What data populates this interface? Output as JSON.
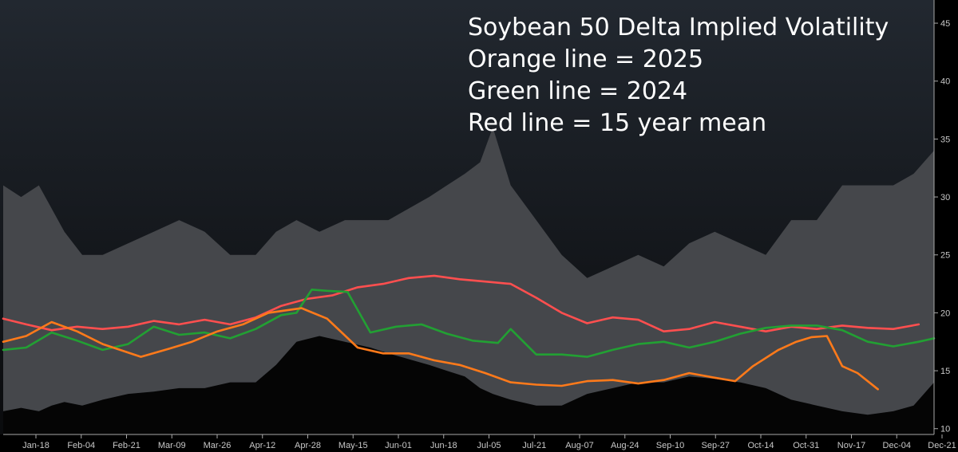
{
  "chart_data": {
    "type": "line",
    "title_lines": [
      "Soybean 50 Delta Implied Volatility",
      "Orange line = 2025",
      "Green line = 2024",
      "Red line = 15 year mean"
    ],
    "x_tick_labels": [
      "Jan-18",
      "Feb-04",
      "Feb-21",
      "Mar-09",
      "Mar-26",
      "Apr-12",
      "Apr-28",
      "May-15",
      "Jun-01",
      "Jun-18",
      "Jul-05",
      "Jul-21",
      "Aug-07",
      "Aug-24",
      "Sep-10",
      "Sep-27",
      "Oct-14",
      "Oct-31",
      "Nov-17",
      "Dec-04",
      "Dec-21"
    ],
    "y_ticks": [
      10,
      15,
      20,
      25,
      30,
      35,
      40,
      45
    ],
    "ylim": [
      9.5,
      47
    ],
    "xlim": [
      1,
      366
    ],
    "grid": false,
    "y_axis_position": "right",
    "colors": {
      "background_top": "#222830",
      "background_bottom": "#0a0b0d",
      "range_band": "#45474b",
      "range_low": "#050505",
      "orange": "#ff7a1a",
      "green": "#22a033",
      "red": "#ff4f4f",
      "axis": "#a8a8a8"
    },
    "range_band": {
      "x": [
        1,
        8,
        15,
        20,
        25,
        32,
        40,
        50,
        60,
        70,
        80,
        90,
        100,
        108,
        116,
        125,
        135,
        145,
        152,
        160,
        168,
        175,
        182,
        188,
        193,
        200,
        210,
        220,
        230,
        240,
        250,
        260,
        270,
        280,
        290,
        300,
        310,
        320,
        330,
        340,
        350,
        358,
        366
      ],
      "upper": [
        31,
        30,
        31,
        29,
        27,
        25,
        25,
        26,
        27,
        28,
        27,
        25,
        25,
        27,
        28,
        27,
        28,
        28,
        28,
        29,
        30,
        31,
        32,
        33,
        36,
        31,
        28,
        25,
        23,
        24,
        25,
        24,
        26,
        27,
        26,
        25,
        28,
        28,
        31,
        31,
        31,
        32,
        34
      ],
      "lower": [
        11.5,
        11.8,
        11.5,
        12,
        12.3,
        12,
        12.5,
        13,
        13.2,
        13.5,
        13.5,
        14,
        14,
        15.5,
        17.5,
        18,
        17.5,
        17,
        16.5,
        16,
        15.5,
        15,
        14.5,
        13.5,
        13,
        12.5,
        12,
        12,
        13,
        13.5,
        14,
        14,
        14.5,
        14.3,
        14,
        13.5,
        12.5,
        12,
        11.5,
        11.2,
        11.5,
        12,
        14
      ]
    },
    "series": [
      {
        "name": "2025",
        "color": "#ff7a1a",
        "x": [
          1,
          10,
          20,
          30,
          40,
          55,
          66,
          75,
          85,
          95,
          105,
          118,
          128,
          140,
          150,
          160,
          170,
          180,
          190,
          200,
          210,
          220,
          230,
          240,
          250,
          260,
          270,
          280,
          288,
          295,
          305,
          312,
          318,
          324,
          330,
          336,
          344
        ],
        "values": [
          17.5,
          18.0,
          19.2,
          18.4,
          17.3,
          16.2,
          16.9,
          17.5,
          18.4,
          19.0,
          20.0,
          20.4,
          19.5,
          17.0,
          16.5,
          16.5,
          15.9,
          15.5,
          14.8,
          14.0,
          13.8,
          13.7,
          14.1,
          14.2,
          13.9,
          14.2,
          14.8,
          14.4,
          14.1,
          15.4,
          16.8,
          17.5,
          17.9,
          18.0,
          15.4,
          14.8,
          13.4
        ]
      },
      {
        "name": "2024",
        "color": "#22a033",
        "x": [
          1,
          10,
          20,
          30,
          40,
          50,
          60,
          70,
          80,
          90,
          100,
          110,
          116,
          122,
          128,
          136,
          145,
          155,
          165,
          175,
          185,
          195,
          200,
          210,
          220,
          230,
          240,
          250,
          260,
          270,
          280,
          290,
          300,
          310,
          320,
          330,
          340,
          350,
          360,
          366
        ],
        "values": [
          16.8,
          17.0,
          18.3,
          17.6,
          16.8,
          17.3,
          18.8,
          18.1,
          18.3,
          17.8,
          18.6,
          19.8,
          20.0,
          22.0,
          21.9,
          21.8,
          18.3,
          18.8,
          19.0,
          18.2,
          17.6,
          17.4,
          18.6,
          16.4,
          16.4,
          16.2,
          16.8,
          17.3,
          17.5,
          17.0,
          17.5,
          18.2,
          18.7,
          18.9,
          18.9,
          18.5,
          17.5,
          17.1,
          17.5,
          17.8
        ]
      },
      {
        "name": "15 year mean",
        "color": "#ff4f4f",
        "x": [
          1,
          10,
          20,
          30,
          40,
          50,
          60,
          70,
          80,
          90,
          100,
          110,
          120,
          130,
          140,
          150,
          160,
          170,
          180,
          190,
          200,
          210,
          220,
          230,
          240,
          250,
          260,
          270,
          280,
          290,
          300,
          310,
          320,
          330,
          340,
          350,
          360
        ],
        "values": [
          19.5,
          19.0,
          18.5,
          18.8,
          18.6,
          18.8,
          19.3,
          19.0,
          19.4,
          19.0,
          19.6,
          20.6,
          21.2,
          21.5,
          22.2,
          22.5,
          23.0,
          23.2,
          22.9,
          22.7,
          22.5,
          21.3,
          20.0,
          19.1,
          19.6,
          19.4,
          18.4,
          18.6,
          19.2,
          18.8,
          18.4,
          18.8,
          18.6,
          18.9,
          18.7,
          18.6,
          19.0
        ]
      }
    ]
  }
}
